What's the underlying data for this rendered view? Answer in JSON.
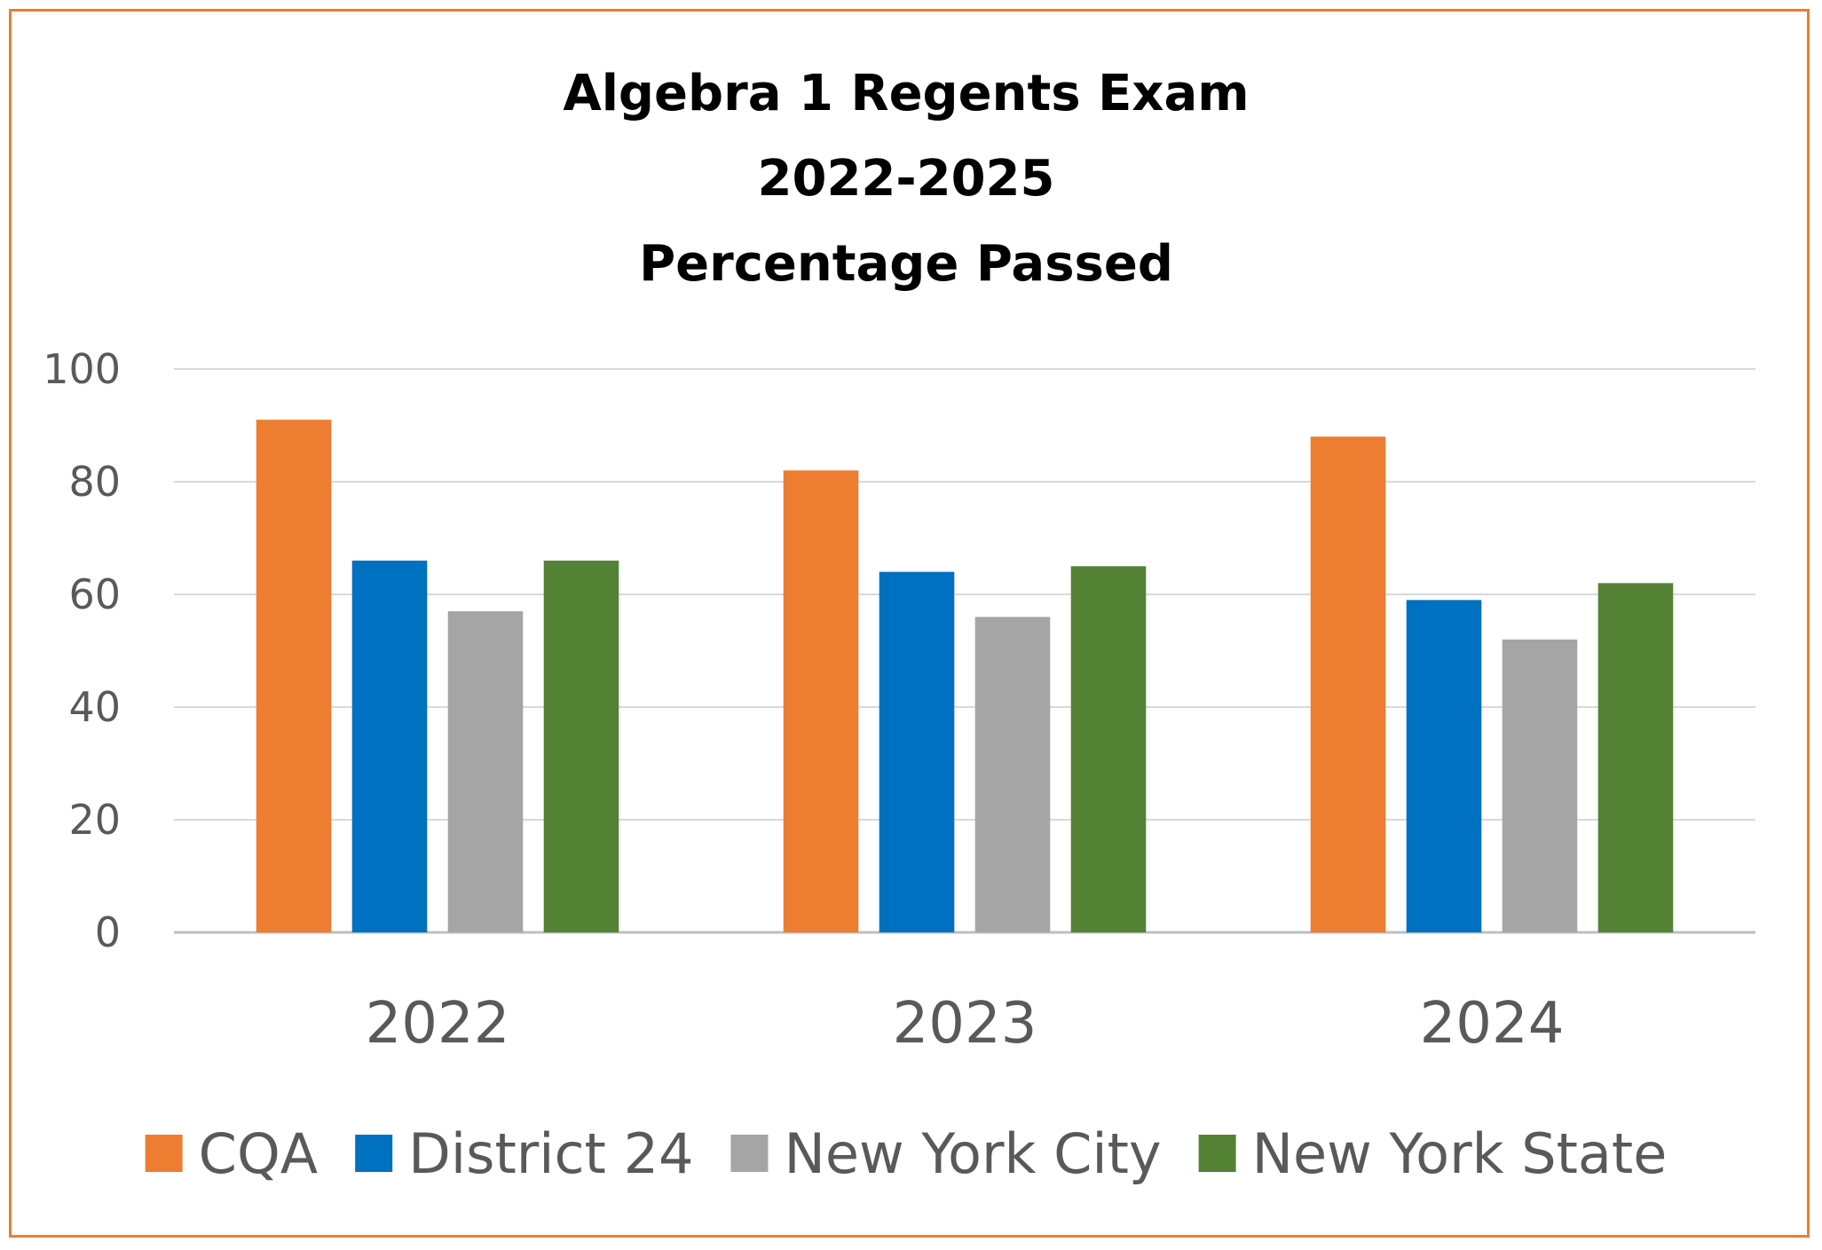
{
  "chart_data": {
    "type": "bar",
    "title_lines": [
      "Algebra 1 Regents Exam",
      "2022-2025",
      "Percentage Passed"
    ],
    "categories": [
      "2022",
      "2023",
      "2024"
    ],
    "series": [
      {
        "name": "CQA",
        "color": "#ED7D31",
        "values": [
          91,
          82,
          88
        ]
      },
      {
        "name": "District 24",
        "color": "#0070C0",
        "values": [
          66,
          64,
          59
        ]
      },
      {
        "name": "New York City",
        "color": "#A5A5A5",
        "values": [
          57,
          56,
          52
        ]
      },
      {
        "name": "New York State",
        "color": "#548235",
        "values": [
          66,
          65,
          62
        ]
      }
    ],
    "ylim": [
      0,
      100
    ],
    "yticks": [
      0,
      20,
      40,
      60,
      80,
      100
    ],
    "grid": true,
    "legend_position": "bottom"
  }
}
